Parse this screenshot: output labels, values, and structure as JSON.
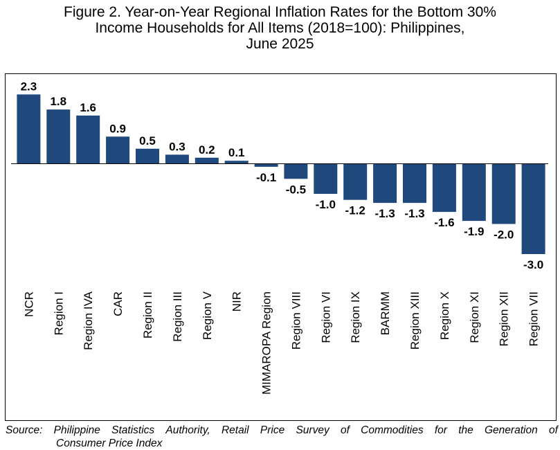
{
  "title_lines": [
    "Figure 2. Year-on-Year Regional Inflation Rates for the Bottom 30%",
    "Income Households for All Items (2018=100): Philippines,",
    "June 2025"
  ],
  "source": {
    "label": "Source:",
    "line1_words": [
      "Philippine",
      "Statistics",
      "Authority,",
      "Retail",
      "Price",
      "Survey",
      "of",
      "Commodities",
      "for",
      "the",
      "Generation",
      "of"
    ],
    "line2": "Consumer Price Index"
  },
  "colors": {
    "bar": "#1f497d",
    "axis": "#000000"
  },
  "chart_data": {
    "type": "bar",
    "categories": [
      "NCR",
      "Region I",
      "Region IVA",
      "CAR",
      "Region II",
      "Region III",
      "Region V",
      "NIR",
      "MIMAROPA Region",
      "Region VIII",
      "Region VI",
      "Region IX",
      "BARMM",
      "Region XIII",
      "Region X",
      "Region XI",
      "Region XII",
      "Region VII"
    ],
    "values": [
      2.3,
      1.8,
      1.6,
      0.9,
      0.5,
      0.3,
      0.2,
      0.1,
      -0.1,
      -0.5,
      -1.0,
      -1.2,
      -1.3,
      -1.3,
      -1.6,
      -1.9,
      -2.0,
      -3.0
    ],
    "data_labels": [
      "2.3",
      "1.8",
      "1.6",
      "0.9",
      "0.5",
      "0.3",
      "0.2",
      "0.1",
      "-0.1",
      "-0.5",
      "-1.0",
      "-1.2",
      "-1.3",
      "-1.3",
      "-1.6",
      "-1.9",
      "-2.0",
      "-3.0"
    ],
    "xlabel": "",
    "ylabel": "",
    "grid": false,
    "legend": "none"
  }
}
